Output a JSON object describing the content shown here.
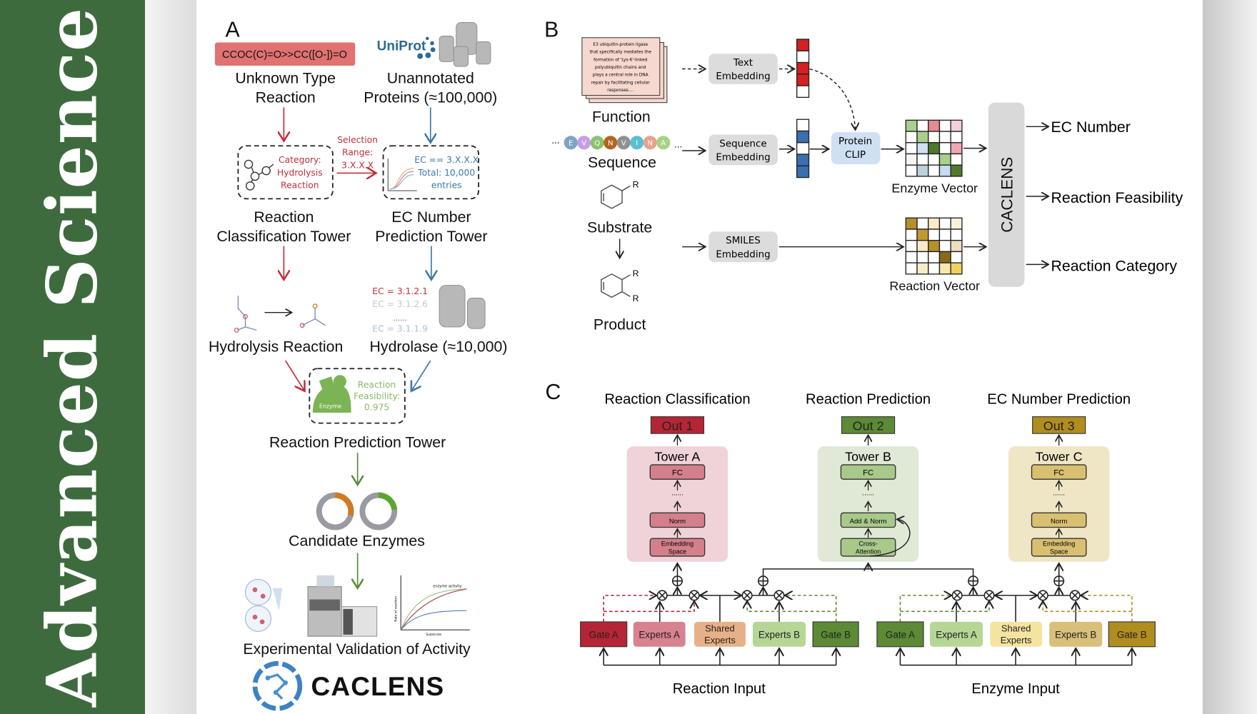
{
  "banner": {
    "title": "Advanced Science"
  },
  "panel_a": {
    "label": "A",
    "smiles": "CCOC(C)=O>>CC([O-])=O",
    "uniprot_logo": "UniProt",
    "unknown_reaction": [
      "Unknown Type",
      "Reaction"
    ],
    "unannotated": [
      "Unannotated",
      "Proteins (≈100,000)"
    ],
    "category_box": [
      "Category:",
      "Hydrolysis",
      "Reaction"
    ],
    "selection": [
      "Selection",
      "Range:",
      "3.X.X.X"
    ],
    "ec_box": [
      "EC == 3.X.X.X",
      "Total: 10,000",
      "entries"
    ],
    "rct_tower": [
      "Reaction",
      "Classification Tower"
    ],
    "ec_tower": [
      "EC Number",
      "Prediction Tower"
    ],
    "hydrolysis": "Hydrolysis Reaction",
    "ec_list": [
      "EC = 3.1.2.1",
      "EC = 3.1.2.6",
      "......",
      "EC = 3.1.1.9"
    ],
    "hydrolase": "Hydrolase (≈10,000)",
    "enzyme_icon_label": "Enzyme",
    "feasibility": [
      "Reaction",
      "Feasibility:",
      "0.975"
    ],
    "rp_tower": "Reaction Prediction Tower",
    "candidates": "Candidate Enzymes",
    "plot_title": "enzyme activity",
    "plot_ylabel": "Rate of reaction",
    "plot_xlabel": "Substrate",
    "validation": "Experimental Validation of Activity",
    "logo_text": "CACLENS"
  },
  "panel_b": {
    "label": "B",
    "function_doc": [
      "E3 ubiquitin-protein ligase",
      "that specifically mediates the",
      "formation of 'Lys-6'-linked",
      "polyubiquitin chains and",
      "plays a central role in DNA",
      "repair by facilitating cellular",
      "responses...."
    ],
    "function": "Function",
    "sequence_residues": [
      "E",
      "V",
      "Q",
      "N",
      "V",
      "I",
      "N",
      "A"
    ],
    "sequence_colors": [
      "#7fa3c4",
      "#c69ee3",
      "#8cc26f",
      "#b2651f",
      "#909090",
      "#5bbfd2",
      "#e6a28c",
      "#a9d183"
    ],
    "ellipsis": "...",
    "sequence": "Sequence",
    "substrate": "Substrate",
    "product": "Product",
    "r_label": "R",
    "text_embedding": [
      "Text",
      "Embedding"
    ],
    "sequence_embedding": [
      "Sequence",
      "Embedding"
    ],
    "smiles_embedding": [
      "SMILES",
      "Embedding"
    ],
    "protein_clip": [
      "Protein",
      "CLIP"
    ],
    "text_vector": [
      "#d42020",
      "#ffffff",
      "#d42020",
      "#d42020",
      "#ffffff"
    ],
    "seq_vector": [
      "#ffffff",
      "#3a6fb0",
      "#ffffff",
      "#3a6fb0",
      "#3a6fb0"
    ],
    "enzyme_vector": "Enzyme Vector",
    "reaction_vector": "Reaction Vector",
    "enzyme_grid": [
      "#a8d08a",
      "#fff",
      "#e88a90",
      "#fff",
      "#f5d0d8",
      "#fff",
      "#a8d08a",
      "#fff",
      "#fff",
      "#fff",
      "#fff",
      "#cfe0f2",
      "#4e7a2e",
      "#fff",
      "#f0a8b0",
      "#f5f5f5",
      "#fff",
      "#fff",
      "#a8d08a",
      "#fff",
      "#fff",
      "#c0cfdc",
      "#fff",
      "#c8daf2",
      "#4e7a2e"
    ],
    "reaction_grid": [
      "#b8902a",
      "#fff",
      "#f8ecc8",
      "#fff",
      "#f8f0d8",
      "#fff",
      "#c09a30",
      "#fff",
      "#fff",
      "#fff",
      "#fff",
      "#f8ecc8",
      "#b8902a",
      "#fff",
      "#ece0c0",
      "#fff",
      "#fff",
      "#fff",
      "#8a6a1a",
      "#fff",
      "#fff",
      "#f8ecc8",
      "#fff",
      "#f8e8b0",
      "#f0d060"
    ],
    "model": "CACLENS",
    "outputs": [
      "EC Number",
      "Reaction Feasibility",
      "Reaction Category"
    ]
  },
  "panel_c": {
    "label": "C",
    "tasks": [
      {
        "title": "Reaction Classification",
        "out": "Out 1",
        "tower": "Tower A",
        "layers": [
          "FC",
          "......",
          "Norm",
          "Embedding",
          "Space"
        ],
        "out_color": "#b52535",
        "tower_bg": "#efd3d8",
        "layer_color": "#d4808c"
      },
      {
        "title": "Reaction Prediction",
        "out": "Out 2",
        "tower": "Tower B",
        "layers": [
          "FC",
          "......",
          "Add & Norm",
          "Cross-",
          "Attention"
        ],
        "out_color": "#5c8a35",
        "tower_bg": "#dfe9d6",
        "layer_color": "#a8c98a"
      },
      {
        "title": "EC Number Prediction",
        "out": "Out 3",
        "tower": "Tower C",
        "layers": [
          "FC",
          "......",
          "Norm",
          "Embedding",
          "Space"
        ],
        "out_color": "#b08d1f",
        "tower_bg": "#efe6c6",
        "layer_color": "#d8c070"
      }
    ],
    "reaction_modules": [
      {
        "label": [
          "Gate A"
        ],
        "color": "#b52535"
      },
      {
        "label": [
          "Experts A"
        ],
        "color": "#d88290"
      },
      {
        "label": [
          "Shared",
          "Experts"
        ],
        "color": "#e8b088"
      },
      {
        "label": [
          "Experts B"
        ],
        "color": "#b5d695"
      },
      {
        "label": [
          "Gate B"
        ],
        "color": "#5c8a35"
      }
    ],
    "enzyme_modules": [
      {
        "label": [
          "Gate A"
        ],
        "color": "#5c8a35"
      },
      {
        "label": [
          "Experts A"
        ],
        "color": "#b5d695"
      },
      {
        "label": [
          "Shared",
          "Experts"
        ],
        "color": "#f5e3a0"
      },
      {
        "label": [
          "Experts B"
        ],
        "color": "#d8c07a"
      },
      {
        "label": [
          "Gate B"
        ],
        "color": "#b08d1f"
      }
    ],
    "reaction_input": "Reaction Input",
    "enzyme_input": "Enzyme Input"
  }
}
